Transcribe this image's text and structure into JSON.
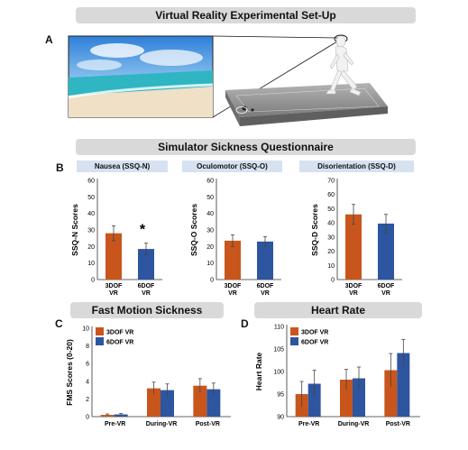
{
  "figure": {
    "title": "Virtual Reality Experimental Set-Up",
    "panel_a": "A",
    "panel_b": "B",
    "panel_c": "C",
    "panel_d": "D",
    "section_ssq": "Simulator Sickness Questionnaire",
    "section_fms": "Fast Motion Sickness",
    "section_hr": "Heart Rate",
    "sub_nausea": "Nausea (SSQ-N)",
    "sub_oculo": "Oculomotor (SSQ-O)",
    "sub_disor": "Disorientation (SSQ-D)"
  },
  "colors": {
    "orange": "#c8561c",
    "blue": "#2e559f",
    "banner": "#d9d9d9",
    "sub_banner": "#d6e2f0",
    "sky_top": "#3d8fe0",
    "sea": "#3ec3c9",
    "sand": "#efe0c6",
    "platform": "#8a8a8a"
  },
  "chart_data": [
    {
      "id": "ssq-n",
      "type": "bar",
      "ylabel": "SSQ-N Scores",
      "ylim": [
        0,
        60
      ],
      "yticks": [
        0,
        10,
        20,
        30,
        40,
        50,
        60
      ],
      "categories": [
        [
          "3DOF",
          "VR"
        ],
        [
          "6DOF",
          "VR"
        ]
      ],
      "values": [
        28,
        18.5
      ],
      "errors": [
        4.5,
        3.5
      ],
      "annotation": "*"
    },
    {
      "id": "ssq-o",
      "type": "bar",
      "ylabel": "SSQ-O Scores",
      "ylim": [
        0,
        60
      ],
      "yticks": [
        0,
        10,
        20,
        30,
        40,
        50,
        60
      ],
      "categories": [
        [
          "3DOF",
          "VR"
        ],
        [
          "6DOF",
          "VR"
        ]
      ],
      "values": [
        23.5,
        23
      ],
      "errors": [
        3.5,
        3
      ]
    },
    {
      "id": "ssq-d",
      "type": "bar",
      "ylabel": "SSQ-D Scores",
      "ylim": [
        0,
        70
      ],
      "yticks": [
        0,
        10,
        20,
        30,
        40,
        50,
        60,
        70
      ],
      "categories": [
        [
          "3DOF",
          "VR"
        ],
        [
          "6DOF",
          "VR"
        ]
      ],
      "values": [
        46,
        39.5
      ],
      "errors": [
        7,
        6.5
      ]
    },
    {
      "id": "fms",
      "type": "bar",
      "ylabel": "FMS Scores (0-20)",
      "ylim": [
        0,
        10
      ],
      "yticks": [
        0,
        2,
        4,
        6,
        8,
        10
      ],
      "categories": [
        "Pre-VR",
        "During-VR",
        "Post-VR"
      ],
      "series": [
        {
          "name": "3DOF VR",
          "values": [
            0.2,
            3.2,
            3.5
          ],
          "errors": [
            0.1,
            0.7,
            0.8
          ]
        },
        {
          "name": "6DOF VR",
          "values": [
            0.25,
            3.0,
            3.1
          ],
          "errors": [
            0.1,
            0.7,
            0.7
          ]
        }
      ],
      "legend": "top-left"
    },
    {
      "id": "hr",
      "type": "bar",
      "ylabel": "Heart Rate",
      "ylim": [
        90,
        110
      ],
      "yticks": [
        90,
        95,
        100,
        105,
        110
      ],
      "categories": [
        "Pre-VR",
        "During-VR",
        "Post-VR"
      ],
      "series": [
        {
          "name": "3DOF VR",
          "values": [
            95,
            98.2,
            100.3
          ],
          "errors": [
            2.8,
            2.3,
            3.7
          ]
        },
        {
          "name": "6DOF VR",
          "values": [
            97.3,
            98.5,
            104.1
          ],
          "errors": [
            3.0,
            2.5,
            3.0
          ]
        }
      ],
      "legend": "top-left"
    }
  ]
}
